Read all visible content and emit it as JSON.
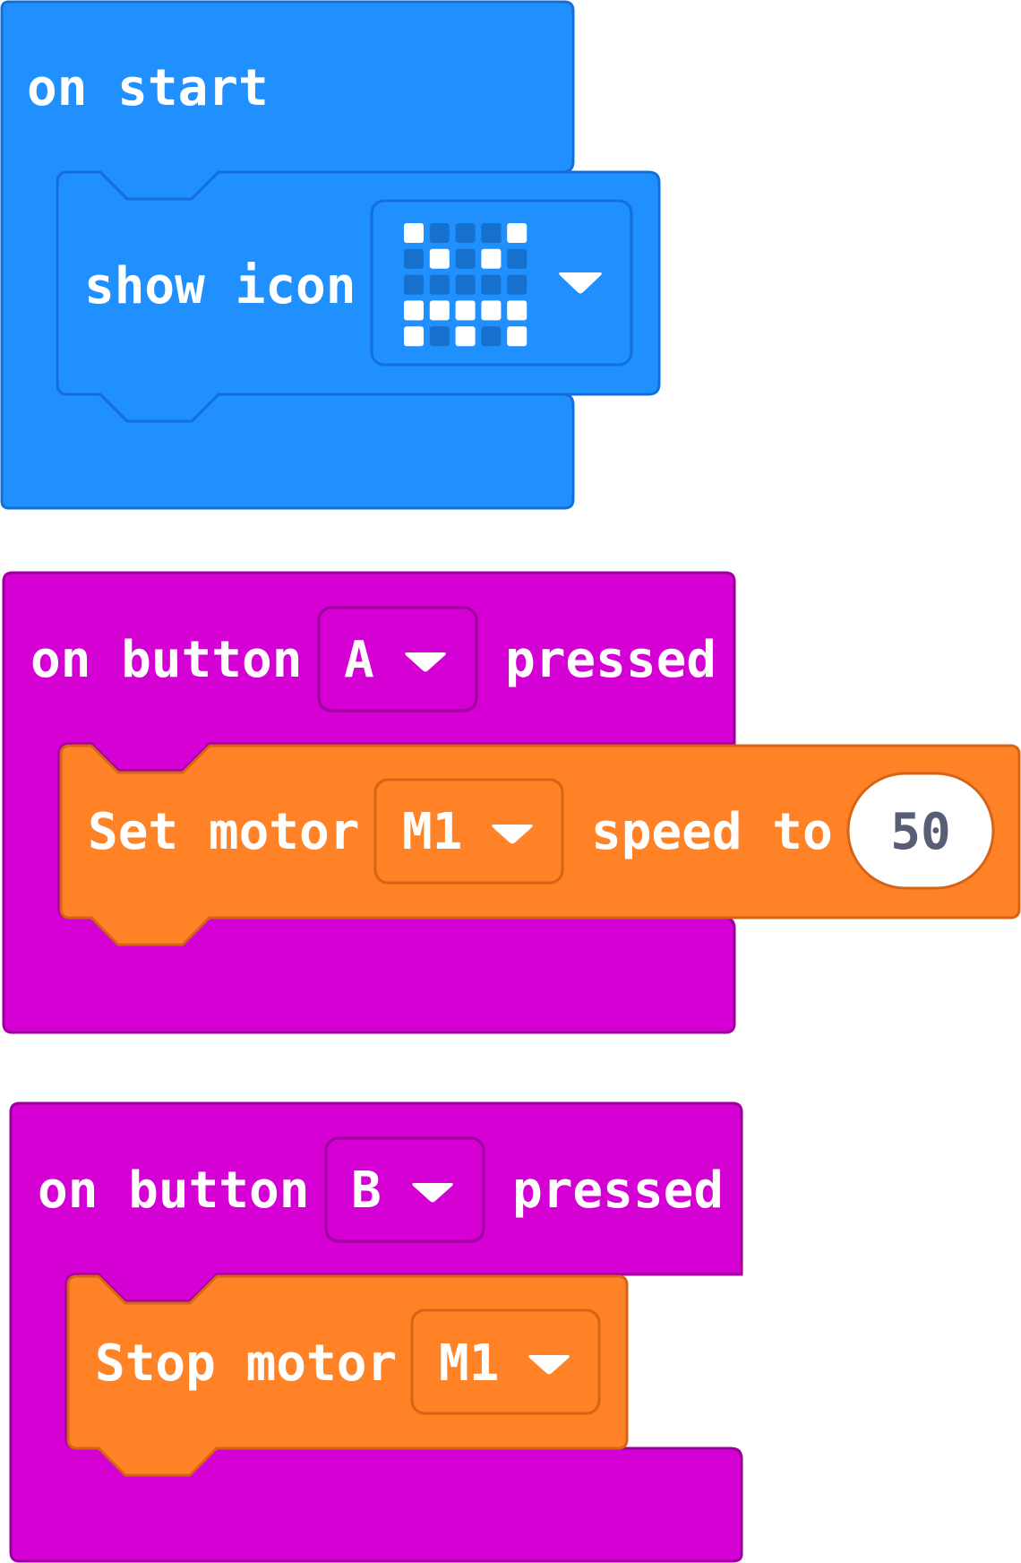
{
  "colors": {
    "events_blue": "#2090ff",
    "events_blue_border": "#1470d8",
    "input_pink": "#d400d4",
    "input_pink_border": "#9c009c",
    "motor_orange": "#ff8226",
    "motor_orange_border": "#d56416",
    "led_on": "#ffffff",
    "led_off": "#1670cd"
  },
  "on_start": {
    "label": "on start",
    "show_icon": {
      "label": "show icon",
      "dropdown_icon": "triangle-down",
      "led_grid": [
        [
          1,
          0,
          0,
          0,
          1
        ],
        [
          0,
          1,
          0,
          1,
          0
        ],
        [
          0,
          0,
          0,
          0,
          0
        ],
        [
          1,
          1,
          1,
          1,
          1
        ],
        [
          1,
          0,
          1,
          0,
          1
        ]
      ]
    }
  },
  "button_a": {
    "label_prefix": "on button",
    "button": "A",
    "label_suffix": "pressed",
    "set_motor": {
      "label": "Set motor",
      "motor": "M1",
      "label2": "speed to",
      "speed": "50"
    }
  },
  "button_b": {
    "label_prefix": "on button",
    "button": "B",
    "label_suffix": "pressed",
    "stop_motor": {
      "label": "Stop motor",
      "motor": "M1"
    }
  }
}
